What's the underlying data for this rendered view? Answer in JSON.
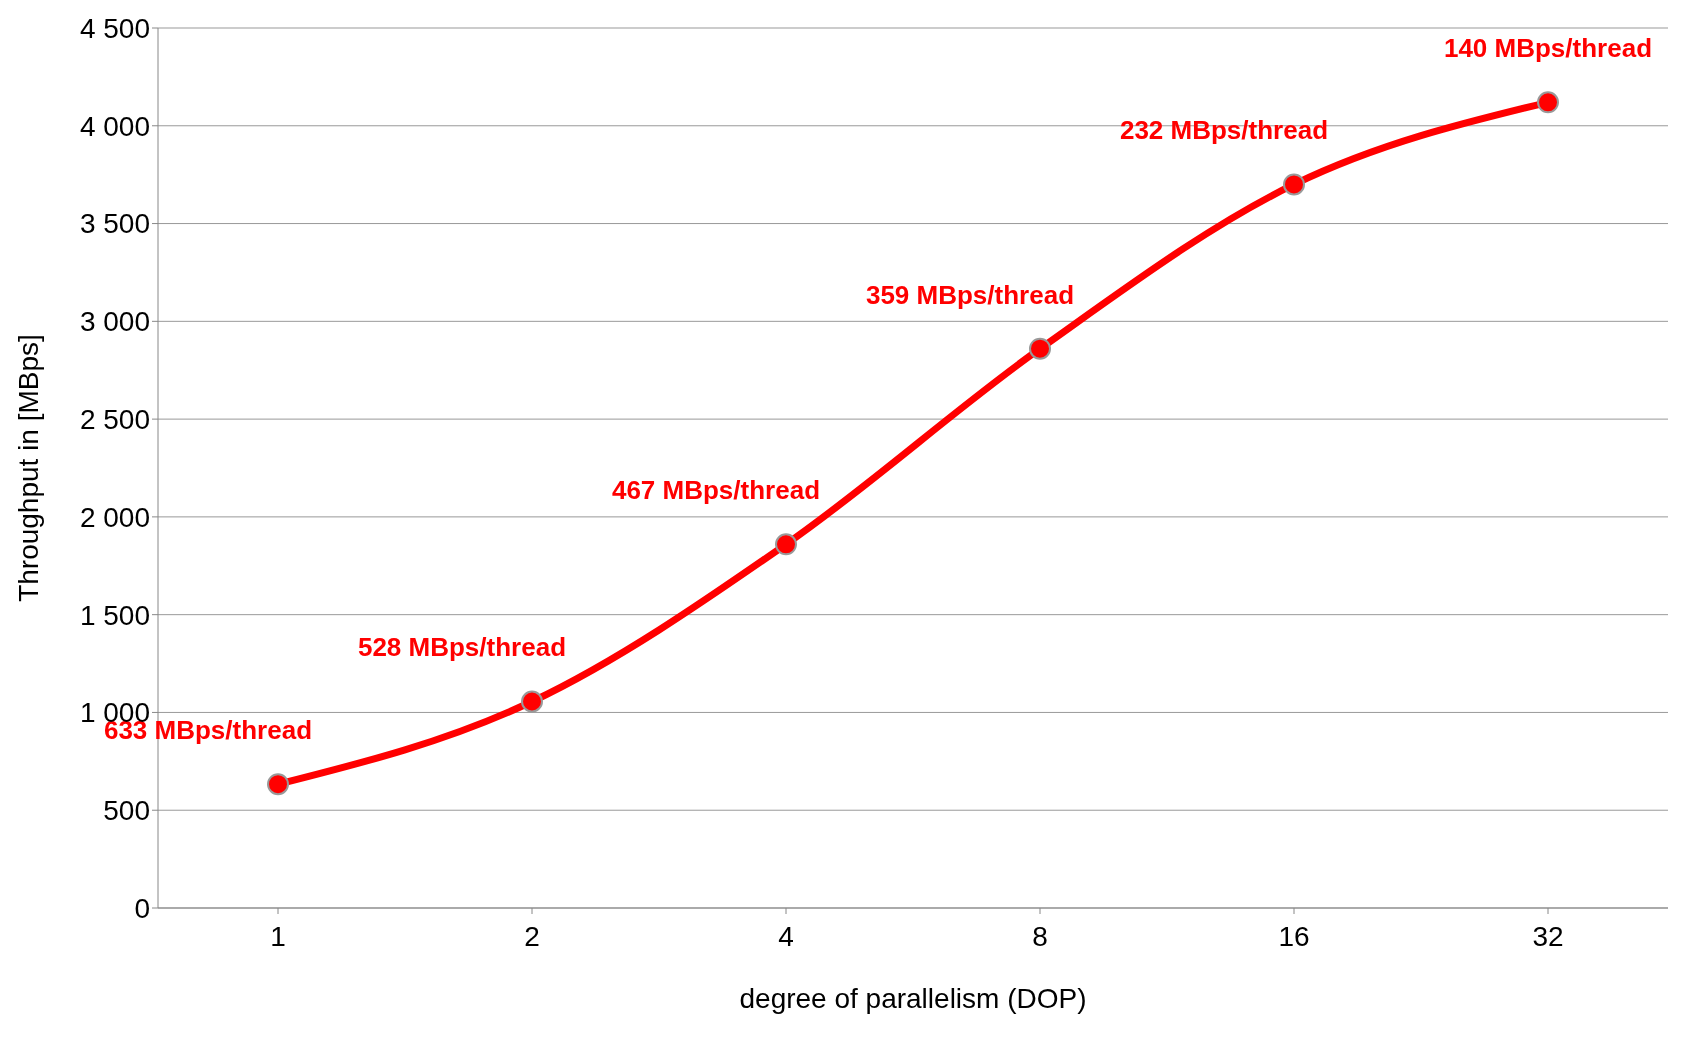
{
  "chart_data": {
    "type": "line",
    "xlabel": "degree of parallelism (DOP)",
    "ylabel": "Throughput in [MBps]",
    "categories": [
      "1",
      "2",
      "4",
      "8",
      "16",
      "32"
    ],
    "series": [
      {
        "color": "#ff0000",
        "values": [
          633,
          1056,
          1860,
          2860,
          3700,
          4120
        ]
      }
    ],
    "ylim": [
      0,
      4500
    ],
    "yticks": [
      {
        "value": 0,
        "label": "0"
      },
      {
        "value": 500,
        "label": "500"
      },
      {
        "value": 1000,
        "label": "1 000"
      },
      {
        "value": 1500,
        "label": "1 500"
      },
      {
        "value": 2000,
        "label": "2 000"
      },
      {
        "value": 2500,
        "label": "2 500"
      },
      {
        "value": 3000,
        "label": "3 000"
      },
      {
        "value": 3500,
        "label": "3 500"
      },
      {
        "value": 4000,
        "label": "4 000"
      },
      {
        "value": 4500,
        "label": "4 500"
      }
    ],
    "grid": "y",
    "legend": false,
    "marker": "circle",
    "line_style": "solid",
    "annotations": [
      {
        "text": "633 MBps/thread",
        "x": "1",
        "y": 633
      },
      {
        "text": "528 MBps/thread",
        "x": "2",
        "y": 1056
      },
      {
        "text": "467 MBps/thread",
        "x": "4",
        "y": 1860
      },
      {
        "text": "359 MBps/thread",
        "x": "8",
        "y": 2860
      },
      {
        "text": "232 MBps/thread",
        "x": "16",
        "y": 3700
      },
      {
        "text": "140 MBps/thread",
        "x": "32",
        "y": 4120
      }
    ]
  }
}
